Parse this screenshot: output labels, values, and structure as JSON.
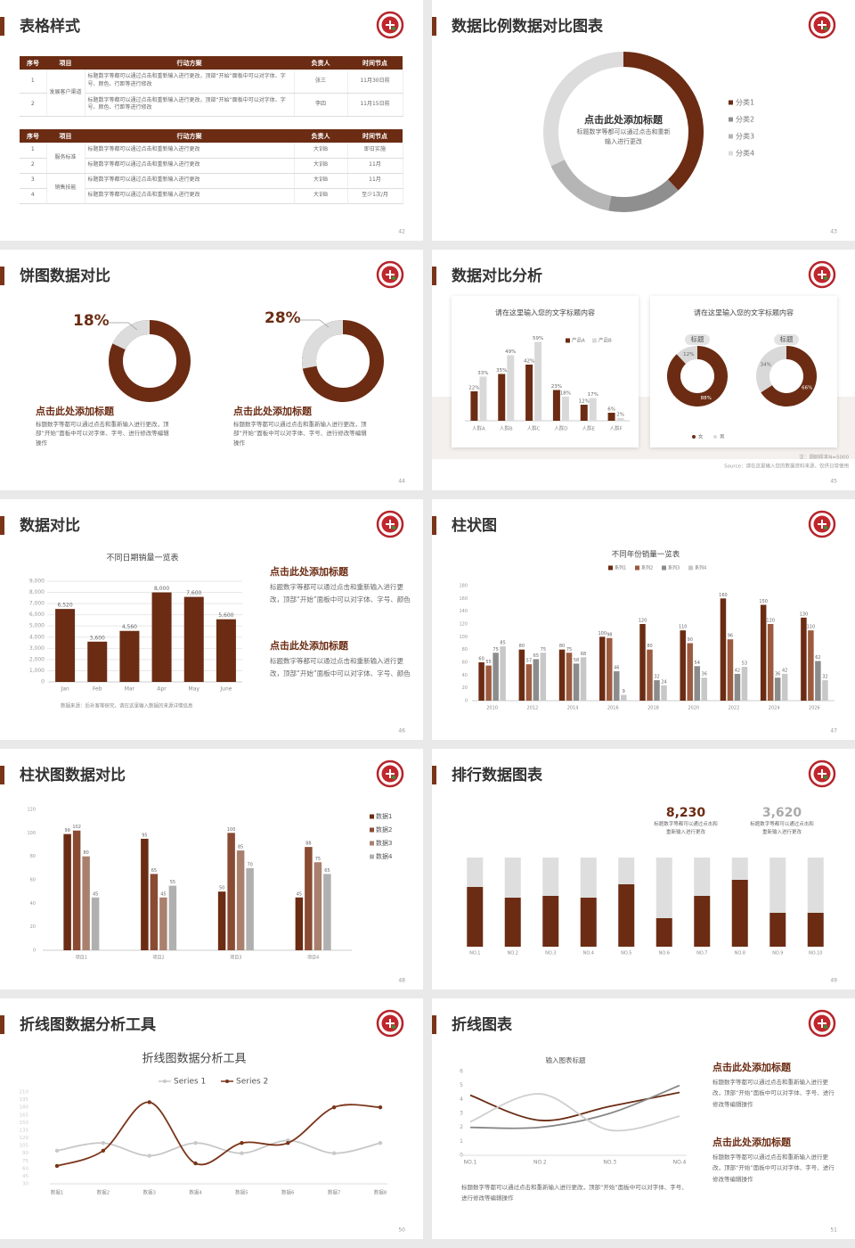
{
  "slides": [
    {
      "title": "表格样式",
      "page": "42",
      "tables": [
        {
          "columns": [
            "序号",
            "项目",
            "行动方案",
            "负责人",
            "时间节点"
          ],
          "groups": [
            {
              "name": "发展客户渠道",
              "rows": [
                [
                  "1",
                  "标题数字等都可以通过点击和重新输入进行更改，顶部“开始”面板中可以对字体、字号、颜色、行距等进行修改",
                  "张三",
                  "11月30日前"
                ],
                [
                  "2",
                  "标题数字等都可以通过点击和重新输入进行更改，顶部“开始”面板中可以对字体、字号、颜色、行距等进行修改",
                  "李四",
                  "11月15日前"
                ]
              ]
            }
          ]
        },
        {
          "columns": [
            "序号",
            "项目",
            "行动方案",
            "负责人",
            "时间节点"
          ],
          "groups": [
            {
              "name": "服务标准",
              "rows": [
                [
                  "1",
                  "标题数字等都可以通过点击和重新输入进行更改",
                  "大训B",
                  "即日实施"
                ],
                [
                  "2",
                  "标题数字等都可以通过点击和重新输入进行更改",
                  "大训B",
                  "11月"
                ]
              ]
            },
            {
              "name": "销售技能",
              "rows": [
                [
                  "3",
                  "标题数字等都可以通过点击和重新输入进行更改",
                  "大训B",
                  "11月"
                ],
                [
                  "4",
                  "标题数字等都可以通过点击和重新输入进行更改",
                  "大训B",
                  "至少1次/月"
                ]
              ]
            }
          ]
        }
      ]
    },
    {
      "title": "数据比例数据对比图表",
      "page": "43",
      "heading": "点击此处添加标题",
      "text": "标题数字等都可以通过点击和重新输入进行更改",
      "chart": {
        "type": "donut",
        "categories": [
          "分类1",
          "分类2",
          "分类3",
          "分类4"
        ],
        "values": [
          38,
          15,
          15,
          32
        ],
        "colors": [
          "#6b2c13",
          "#8f8f8f",
          "#b5b5b5",
          "#dcdcdc"
        ]
      }
    },
    {
      "title": "饼图数据对比",
      "page": "44",
      "colors": [
        "#dcdcdc",
        "#6b2c13"
      ],
      "items": [
        {
          "value": 18,
          "value_label": "18%",
          "heading": "点击此处添加标题",
          "text": "标题数字等都可以通过点击和重新输入进行更改，顶部“开始”面板中可以对字体、字号、进行修改等编辑操作"
        },
        {
          "value": 28,
          "value_label": "28%",
          "heading": "点击此处添加标题",
          "text": "标题数字等都可以通过点击和重新输入进行更改，顶部“开始”面板中可以对字体、字号、进行修改等编辑操作"
        }
      ]
    },
    {
      "title": "数据对比分析",
      "page": "45",
      "bar_card": {
        "title": "请在这里输入您的文字标题内容",
        "chart": {
          "type": "bar",
          "categories": [
            "人群A",
            "人群B",
            "人群C",
            "人群D",
            "人群E",
            "人群F"
          ],
          "series": [
            {
              "name": "产品A",
              "color": "#6b2c13",
              "values": [
                22,
                35,
                42,
                23,
                12,
                6
              ],
              "value_labels": [
                "22%",
                "35%",
                "42%",
                "23%",
                "12%",
                "6%"
              ]
            },
            {
              "name": "产品B",
              "color": "#d9d9d9",
              "values": [
                33,
                49,
                59,
                18,
                17,
                2
              ],
              "value_labels": [
                "33%",
                "49%",
                "59%",
                "18%",
                "17%",
                "2%"
              ]
            }
          ],
          "ylim": [
            0,
            60
          ]
        }
      },
      "donut_card": {
        "title": "请在这里输入您的文字标题内容",
        "categories": [
          "女",
          "男"
        ],
        "colors": [
          "#6b2c13",
          "#d9d9d9"
        ],
        "donuts": [
          {
            "label": "标题",
            "values": [
              88,
              12
            ],
            "value_labels": [
              "88%",
              "12%"
            ]
          },
          {
            "label": "标题",
            "values": [
              66,
              34
            ],
            "value_labels": [
              "66%",
              "34%"
            ]
          }
        ]
      },
      "note": "注：调研样本N=5000",
      "source": "Source：请在这里输入您的数据资料来源，仅供日常使用"
    },
    {
      "title": "数据对比",
      "page": "46",
      "chart": {
        "type": "bar",
        "title": "不同日期销量一览表",
        "categories": [
          "Jan",
          "Feb",
          "Mar",
          "Apr",
          "May",
          "June"
        ],
        "series": [
          {
            "color": "#6b2c13",
            "values": [
              6520,
              3600,
              4560,
              8000,
              7600,
              5600
            ],
            "value_labels": [
              "6,520",
              "3,600",
              "4,560",
              "8,000",
              "7,600",
              "5,600"
            ]
          }
        ],
        "ylim": [
          0,
          9000
        ],
        "yticks": [
          0,
          {
            "value": 1000,
            "label": "1,000"
          },
          {
            "value": 2000,
            "label": "2,000"
          },
          {
            "value": 3000,
            "label": "3,000"
          },
          {
            "value": 4000,
            "label": "4,000"
          },
          {
            "value": 5000,
            "label": "5,000"
          },
          {
            "value": 6000,
            "label": "6,000"
          },
          {
            "value": 7000,
            "label": "7,000"
          },
          {
            "value": 8000,
            "label": "8,000"
          },
          {
            "value": 9000,
            "label": "9,000"
          }
        ],
        "grid": true,
        "source": "数据来源：后补客等研究，请在这里输入数据的来源详情信息"
      },
      "points": [
        {
          "heading": "点击此处添加标题",
          "text": "标题数字等都可以通过点击和重新输入进行更改，顶部“开始”面板中可以对字体、字号、颜色"
        },
        {
          "heading": "点击此处添加标题",
          "text": "标题数字等都可以通过点击和重新输入进行更改，顶部“开始”面板中可以对字体、字号、颜色"
        }
      ]
    },
    {
      "title": "柱状图",
      "page": "47",
      "chart": {
        "type": "bar",
        "title": "不同年份销量一览表",
        "categories": [
          "2010",
          "2012",
          "2014",
          "2016",
          "2018",
          "2020",
          "2022",
          "2024",
          "2026"
        ],
        "series": [
          {
            "name": "系列1",
            "color": "#6b2c13",
            "values": [
              60,
              80,
              80,
              100,
              120,
              110,
              160,
              150,
              130
            ]
          },
          {
            "name": "系列2",
            "color": "#9c5a3f",
            "values": [
              55,
              57,
              75,
              98,
              80,
              90,
              96,
              120,
              110
            ]
          },
          {
            "name": "系列3",
            "color": "#8c8c8c",
            "values": [
              75,
              65,
              58,
              46,
              32,
              54,
              42,
              36,
              62
            ]
          },
          {
            "name": "系列4",
            "color": "#c8c8c8",
            "values": [
              85,
              75,
              68,
              9,
              24,
              36,
              53,
              42,
              32
            ]
          }
        ],
        "ylim": [
          0,
          180
        ],
        "yticks": [
          0,
          20,
          40,
          60,
          80,
          100,
          120,
          140,
          160,
          180
        ]
      }
    },
    {
      "title": "柱状图数据对比",
      "page": "48",
      "chart": {
        "type": "bar",
        "categories": [
          "项目1",
          "项目2",
          "项目3",
          "项目4"
        ],
        "series": [
          {
            "name": "数据1",
            "color": "#6b2c13",
            "values": [
              99,
              95,
              50,
              45
            ]
          },
          {
            "name": "数据2",
            "color": "#8a4b33",
            "values": [
              102,
              65,
              100,
              88
            ]
          },
          {
            "name": "数据3",
            "color": "#a9806e",
            "values": [
              80,
              45,
              85,
              75
            ]
          },
          {
            "name": "数据4",
            "color": "#b0b0b0",
            "values": [
              45,
              55,
              70,
              65
            ]
          }
        ],
        "ylim": [
          0,
          120
        ],
        "yticks": [
          0,
          20,
          40,
          60,
          80,
          100,
          120
        ]
      }
    },
    {
      "title": "排行数据图表",
      "page": "49",
      "stats": [
        {
          "value": "8,230",
          "text": "标题数字等都可以通过点击和重新输入进行更改"
        },
        {
          "value": "3,620",
          "text": "标题数字等都可以通过点击和重新输入进行更改"
        }
      ],
      "chart": {
        "type": "stacked_bar",
        "categories": [
          "NO.1",
          "NO.2",
          "NO.3",
          "NO.4",
          "NO.5",
          "NO.6",
          "NO.7",
          "NO.8",
          "NO.9",
          "NO.10"
        ],
        "series": [
          {
            "color": "#6b2c13",
            "values": [
              67,
              55,
              57,
              55,
              70,
              32,
              57,
              75,
              38,
              38
            ]
          },
          {
            "color": "#dedede",
            "values": [
              33,
              45,
              43,
              45,
              30,
              68,
              43,
              25,
              62,
              62
            ]
          }
        ],
        "ylim": [
          0,
          100
        ]
      }
    },
    {
      "title": "折线图数据分析工具",
      "page": "50",
      "chart": {
        "type": "line",
        "title": "折线图数据分析工具",
        "categories": [
          "数据1",
          "数据2",
          "数据3",
          "数据4",
          "数据5",
          "数据6",
          "数据7",
          "数据8"
        ],
        "series": [
          {
            "name": "Series 1",
            "color": "#c8c8c8",
            "values": [
              95,
              110,
              85,
              110,
              90,
              115,
              90,
              110
            ]
          },
          {
            "name": "Series 2",
            "color": "#7a3418",
            "values": [
              65,
              95,
              190,
              70,
              110,
              110,
              180,
              180
            ]
          }
        ],
        "ylim": [
          30,
          210
        ],
        "yticks": [
          30,
          45,
          60,
          75,
          90,
          105,
          120,
          135,
          150,
          165,
          180,
          195,
          210
        ]
      }
    },
    {
      "title": "折线图表",
      "page": "51",
      "chart": {
        "type": "line",
        "title": "输入图表标题",
        "categories": [
          "NO.1",
          "NO.2",
          "NO.3",
          "NO.4"
        ],
        "series": [
          {
            "color": "#6b2c13",
            "values": [
              4.3,
              2.5,
              3.5,
              4.5
            ]
          },
          {
            "color": "#888888",
            "values": [
              2.0,
              2.0,
              3.0,
              5.0
            ]
          },
          {
            "color": "#cfcfcf",
            "values": [
              2.4,
              4.4,
              1.8,
              2.8
            ]
          }
        ],
        "ylim": [
          0,
          6
        ],
        "yticks": [
          0,
          1,
          2,
          3,
          4,
          5,
          6
        ]
      },
      "points": [
        {
          "heading": "点击此处添加标题",
          "text": "标题数字等都可以通过点击和重新输入进行更改，顶部“开始”面板中可以对字体、字号、进行修改等编辑操作"
        },
        {
          "heading": "点击此处添加标题",
          "text": "标题数字等都可以通过点击和重新输入进行更改，顶部“开始”面板中可以对字体、字号、进行修改等编辑操作"
        }
      ],
      "text": "标题数字等都可以通过点击和重新输入进行更改，顶部“开始”面板中可以对字体、字号、进行修改等编辑操作"
    }
  ]
}
